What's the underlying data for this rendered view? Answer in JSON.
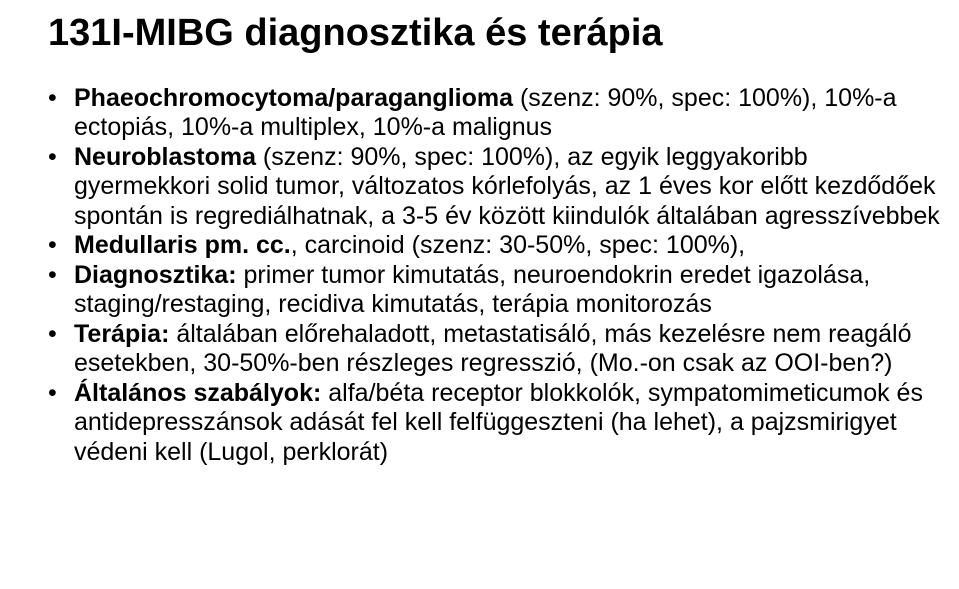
{
  "title": "131I-MIBG diagnosztika és terápia",
  "bullets": [
    {
      "kind": "bold-prefix",
      "bold": "Phaeochromocytoma/paraganglioma",
      "rest": " (szenz: 90%, spec: 100%), 10%-a ectopiás, 10%-a multiplex, 10%-a malignus"
    },
    {
      "kind": "bold-prefix",
      "bold": "Neuroblastoma",
      "rest": " (szenz: 90%, spec: 100%), az egyik leggyakoribb gyermekkori solid tumor, változatos kórlefolyás, az 1 éves kor előtt kezdődőek spontán is regrediálhatnak, a 3-5 év között kiindulók általában agresszívebbek"
    },
    {
      "kind": "bold-prefix",
      "bold": "Medullaris pm. cc.",
      "rest": ", carcinoid (szenz: 30-50%, spec: 100%),"
    },
    {
      "kind": "bold-prefix",
      "bold": "Diagnosztika:",
      "rest": " primer tumor kimutatás, neuroendokrin eredet igazolása, staging/restaging, recidiva kimutatás, terápia monitorozás"
    },
    {
      "kind": "bold-prefix",
      "bold": "Terápia:",
      "rest": " általában előrehaladott, metastatisáló, más kezelésre nem reagáló esetekben, 30-50%-ben részleges regresszió, (Mo.-on csak az OOI-ben?)"
    },
    {
      "kind": "bold-prefix",
      "bold": "Általános szabályok:",
      "rest": " alfa/béta receptor blokkolók, sympatomimeticumok és antidepresszánsok adását fel kell felfüggeszteni (ha lehet), a pajzsmirigyet védeni kell (Lugol, perklorát)"
    }
  ]
}
